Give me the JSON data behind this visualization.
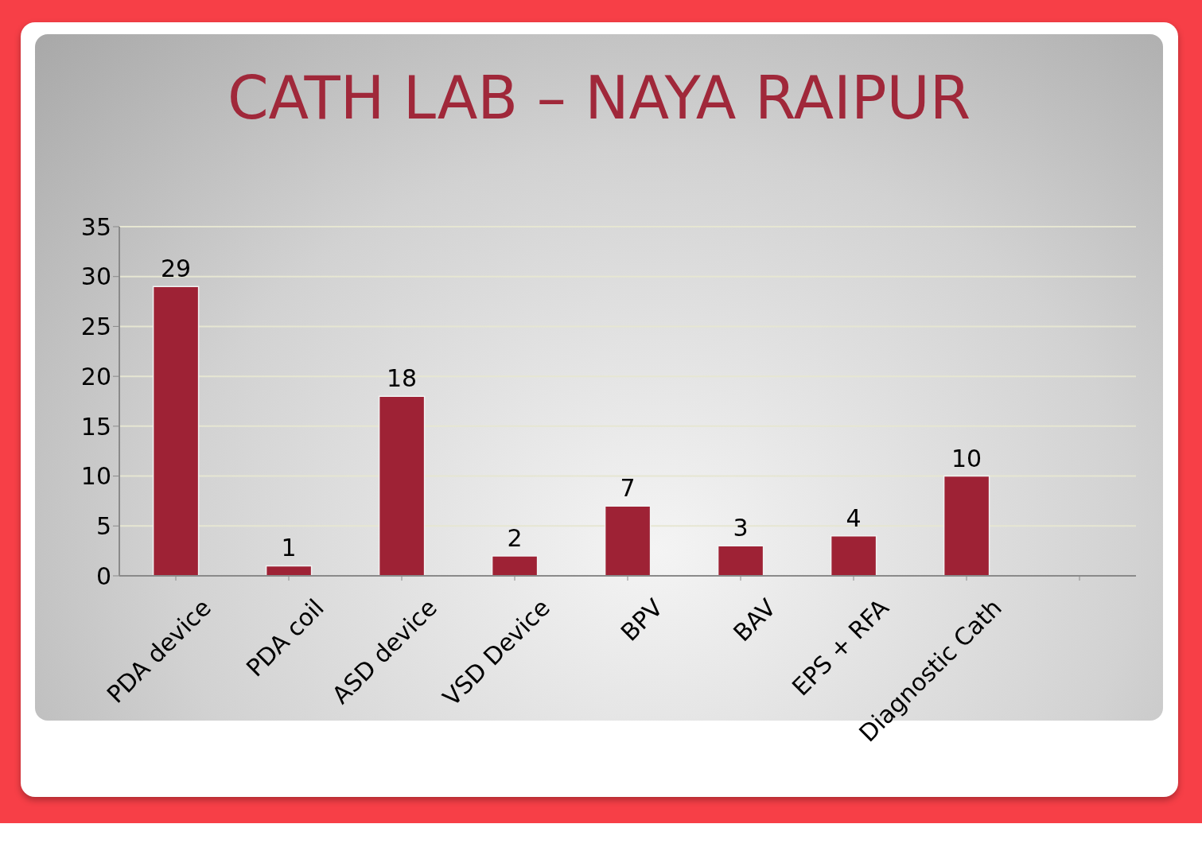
{
  "chart_data": {
    "type": "bar",
    "title": "CATH LAB – NAYA RAIPUR",
    "categories": [
      "PDA device",
      "PDA coil",
      "ASD device",
      "VSD Device",
      "BPV",
      "BAV",
      "EPS + RFA",
      "Diagnostic Cath",
      null
    ],
    "values": [
      29,
      1,
      18,
      2,
      7,
      3,
      4,
      10,
      null
    ],
    "color": "#9e2235",
    "ylim": [
      0,
      35
    ],
    "yticks": [
      0,
      5,
      10,
      15,
      20,
      25,
      30,
      35
    ],
    "grid": "y",
    "data_labels": true
  }
}
